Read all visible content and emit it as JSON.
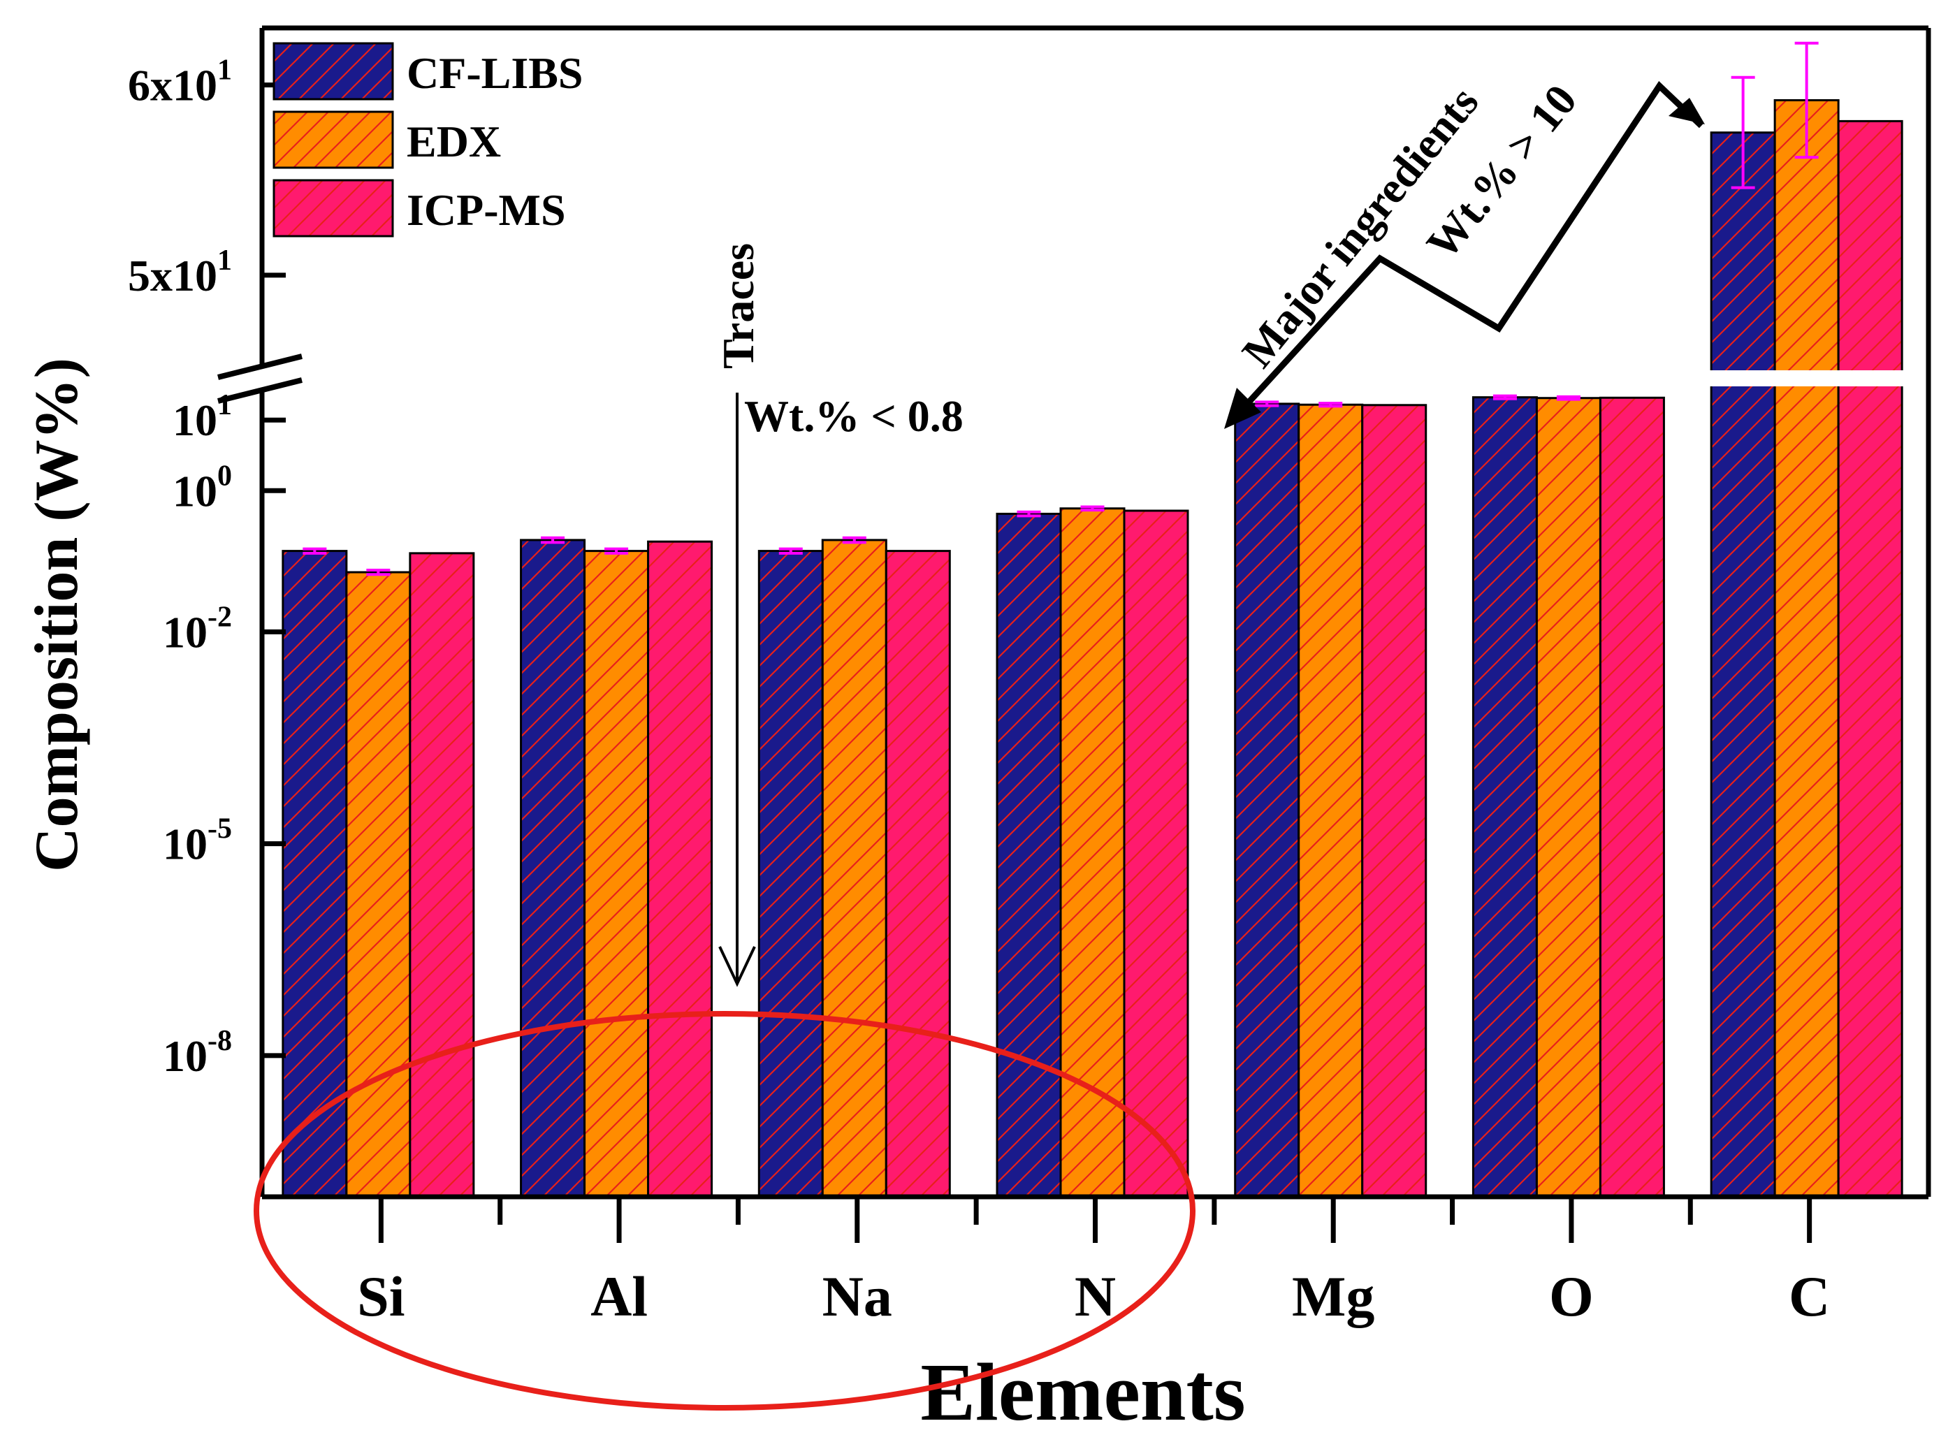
{
  "chart_data": {
    "type": "bar",
    "title": "",
    "xlabel": "Elements",
    "ylabel": "Composition (W%)",
    "y_scale": "log-with-axis-break",
    "categories": [
      "Si",
      "Al",
      "Na",
      "N",
      "Mg",
      "O",
      "C"
    ],
    "series": [
      {
        "name": "CF-LIBS",
        "color": "#1a1a8c",
        "values": [
          0.14,
          0.2,
          0.14,
          0.47,
          17,
          21,
          57.5
        ],
        "errors": [
          0.01,
          0.015,
          0.01,
          0.03,
          1.0,
          1.0,
          2.9
        ]
      },
      {
        "name": "EDX",
        "color": "#ff8c00",
        "values": [
          0.07,
          0.14,
          0.2,
          0.56,
          16.5,
          20.5,
          59.2
        ],
        "errors": [
          0.005,
          0.01,
          0.015,
          0.03,
          0.8,
          0.9,
          3.0
        ]
      },
      {
        "name": "ICP-MS",
        "color": "#ff1a6e",
        "values": [
          0.13,
          0.19,
          0.14,
          0.52,
          16.3,
          20.7,
          58.1
        ],
        "errors": null
      }
    ],
    "y_ticks_lower": [
      {
        "value": 1e-08,
        "base": "10",
        "exp": "-8"
      },
      {
        "value": 1e-05,
        "base": "10",
        "exp": "-5"
      },
      {
        "value": 0.01,
        "base": "10",
        "exp": "-2"
      },
      {
        "value": 1,
        "base": "10",
        "exp": "0"
      },
      {
        "value": 10,
        "base": "10",
        "exp": "1"
      }
    ],
    "y_ticks_upper": [
      {
        "value": 50,
        "base": "5x10",
        "exp": "1"
      },
      {
        "value": 60,
        "base": "6x10",
        "exp": "1"
      }
    ],
    "ylim_lower": [
      1e-10,
      30
    ],
    "ylim_upper": [
      45,
      63
    ],
    "legend_position": "top-left",
    "annotations": {
      "traces_label": "Traces",
      "traces_threshold": "Wt.% < 0.8",
      "major_label": "Major ingredients",
      "major_threshold": "Wt.% > 10"
    },
    "error_bar_color": "#ff00ff",
    "highlight_color": "#e8201a",
    "hatch_color": "#e8201a"
  }
}
